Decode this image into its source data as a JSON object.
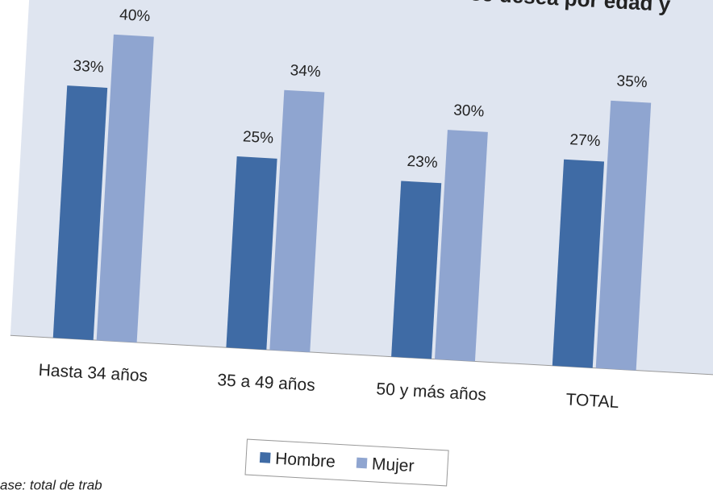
{
  "chart_data": {
    "type": "bar",
    "title": "cuando se desea por edad y",
    "categories": [
      "Hasta 34 años",
      "35 a 49 años",
      "50 y más años",
      "TOTAL"
    ],
    "series": [
      {
        "name": "Hombre",
        "color": "#3f6ba5",
        "values": [
          33,
          25,
          23,
          27
        ],
        "value_labels": [
          "33%",
          "25%",
          "23%",
          "27%"
        ]
      },
      {
        "name": "Mujer",
        "color": "#8fa5d0",
        "values": [
          40,
          34,
          30,
          35
        ],
        "value_labels": [
          "40%",
          "34%",
          "30%",
          "35%"
        ]
      }
    ],
    "legend": "bottom",
    "footnote": "ase: total de trab"
  }
}
